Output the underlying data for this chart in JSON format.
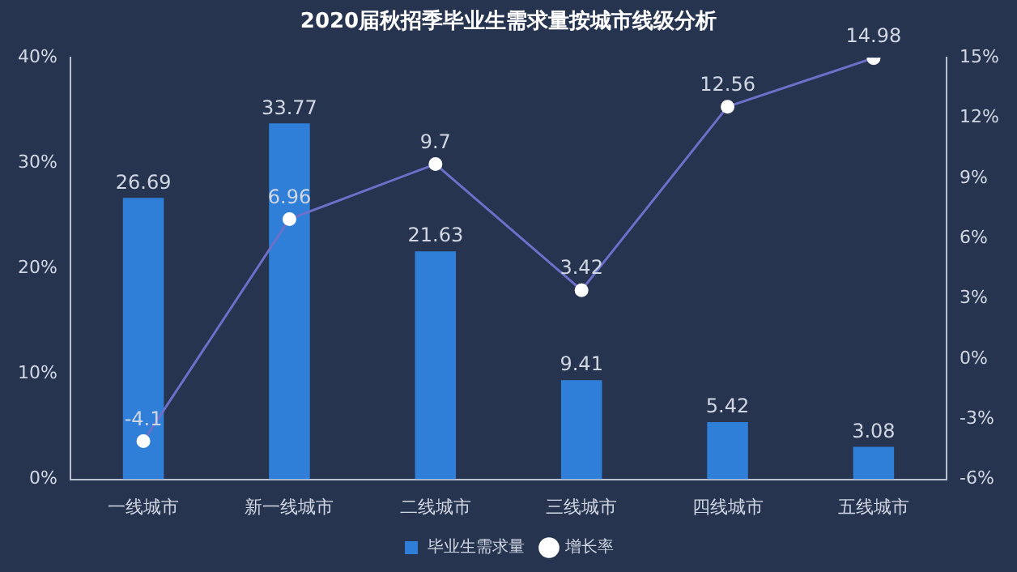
{
  "chart_data": {
    "type": "bar",
    "title": "2020届秋招季毕业生需求量按城市线级分析",
    "categories": [
      "一线城市",
      "新一线城市",
      "二线城市",
      "三线城市",
      "四线城市",
      "五线城市"
    ],
    "series": [
      {
        "name": "毕业生需求量",
        "color": "#2f7fd8",
        "values": [
          26.69,
          33.77,
          21.63,
          9.41,
          5.42,
          3.08
        ]
      },
      {
        "name": "增长率",
        "type": "line",
        "axis": "y2",
        "color": "#6c70c9",
        "values": [
          -4.1,
          6.96,
          9.7,
          3.42,
          12.56,
          14.98
        ]
      }
    ],
    "ylim": [
      0,
      40
    ],
    "yticks": [
      {
        "value": 0,
        "label": "0%"
      },
      {
        "value": 10,
        "label": "10%"
      },
      {
        "value": 20,
        "label": "20%"
      },
      {
        "value": 30,
        "label": "30%"
      },
      {
        "value": 40,
        "label": "40%"
      }
    ],
    "y2lim": [
      -6,
      15
    ],
    "y2ticks": [
      {
        "value": -6,
        "label": "-6%"
      },
      {
        "value": -3,
        "label": "-3%"
      },
      {
        "value": 0,
        "label": "0%"
      },
      {
        "value": 3,
        "label": "3%"
      },
      {
        "value": 6,
        "label": "6%"
      },
      {
        "value": 9,
        "label": "9%"
      },
      {
        "value": 12,
        "label": "12%"
      },
      {
        "value": 15,
        "label": "15%"
      }
    ],
    "grid": false,
    "legend": "bottom",
    "marker": "circle",
    "data_labels": true
  }
}
